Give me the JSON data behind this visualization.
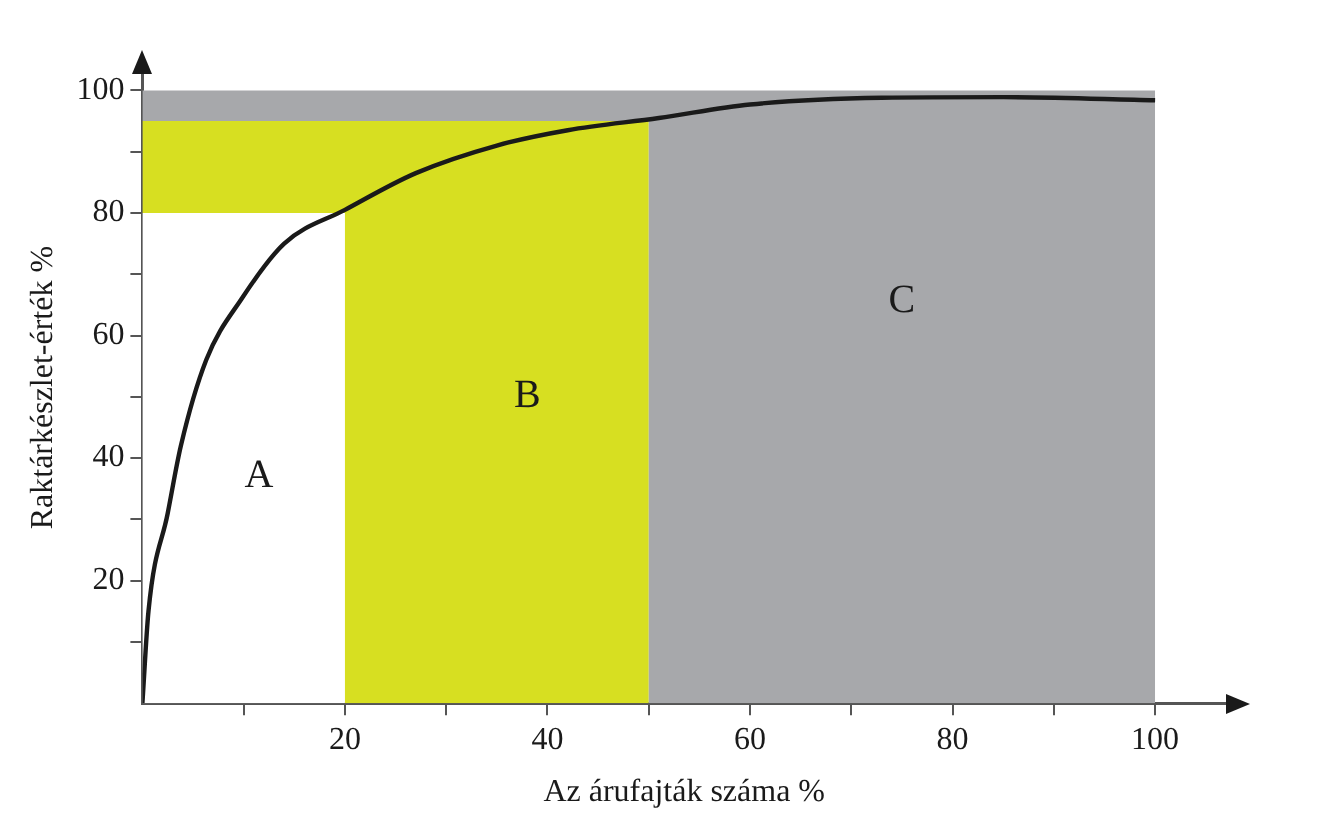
{
  "chart_data": {
    "type": "line",
    "xlabel": "Az árufajták száma %",
    "ylabel": "Raktárkészlet-érték %",
    "xlim": [
      0,
      107
    ],
    "ylim": [
      0,
      103
    ],
    "xticks": [
      {
        "value": 10,
        "label": null
      },
      20,
      {
        "value": 30,
        "label": null
      },
      40,
      {
        "value": 50,
        "label": null
      },
      60,
      {
        "value": 70,
        "label": null
      },
      80,
      {
        "value": 90,
        "label": null
      },
      100
    ],
    "yticks": [
      {
        "value": 10,
        "label": null
      },
      20,
      {
        "value": 30,
        "label": null
      },
      40,
      {
        "value": 50,
        "label": null
      },
      60,
      {
        "value": 70,
        "label": null
      },
      80,
      {
        "value": 90,
        "label": null
      },
      100
    ],
    "grid": false,
    "legend": false,
    "marker": "none",
    "stacked": true,
    "series": [
      {
        "type": "area",
        "color": "#ffffff",
        "x": [
          0,
          20,
          20,
          50,
          50,
          100
        ],
        "values": [
          80,
          80,
          0,
          0,
          0,
          0
        ]
      },
      {
        "type": "area",
        "color": "#d7df21",
        "x": [
          0,
          20,
          20,
          50,
          50,
          100
        ],
        "values": [
          15,
          15,
          95,
          95,
          0,
          0
        ]
      },
      {
        "type": "area",
        "color": "#a7a8ab",
        "x": [
          0,
          20,
          20,
          50,
          50,
          100
        ],
        "values": [
          5,
          5,
          5,
          5,
          100,
          100
        ]
      },
      {
        "type": "line",
        "color": "#1a1a1a",
        "line_style": "solid",
        "x": [
          0,
          0.6,
          2.5,
          3.8,
          6.3,
          9.8,
          14,
          20,
          27,
          35,
          42,
          51,
          60,
          73,
          85,
          100
        ],
        "values": [
          0,
          15,
          31,
          42,
          56,
          66,
          75,
          80.5,
          86.5,
          91,
          93.5,
          95.5,
          97.7,
          98.8,
          98.9,
          98.4
        ]
      }
    ],
    "annotations": [
      "A",
      "B",
      "C"
    ]
  }
}
